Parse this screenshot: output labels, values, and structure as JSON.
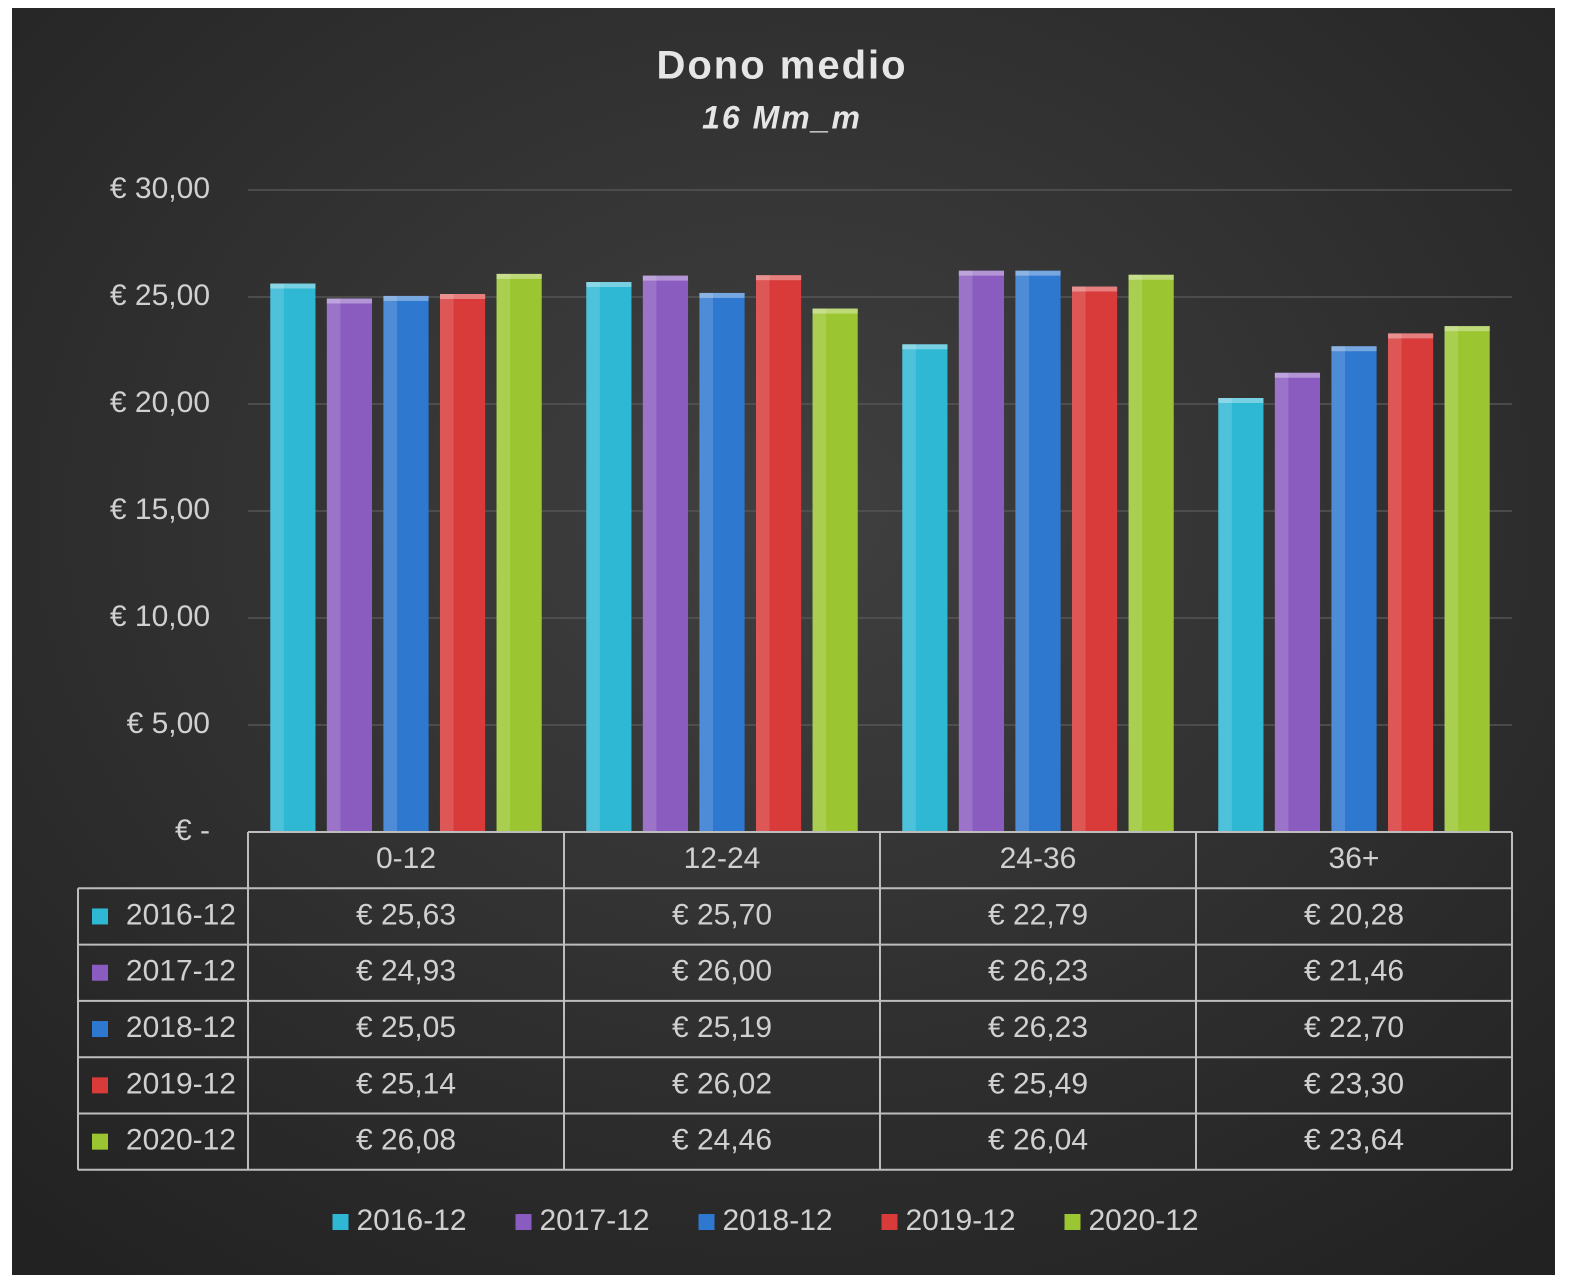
{
  "chart_data": {
    "type": "bar",
    "title": "Dono medio",
    "subtitle": "16 Mm_m",
    "categories": [
      "0-12",
      "12-24",
      "24-36",
      "36+"
    ],
    "series": [
      {
        "name": "2016-12",
        "color": "#2fb8d4",
        "values": [
          25.63,
          25.7,
          22.79,
          20.28
        ],
        "value_labels": [
          "€ 25,63",
          "€ 25,70",
          "€ 22,79",
          "€ 20,28"
        ]
      },
      {
        "name": "2017-12",
        "color": "#8a5cc0",
        "values": [
          24.93,
          26.0,
          26.23,
          21.46
        ],
        "value_labels": [
          "€ 24,93",
          "€ 26,00",
          "€ 26,23",
          "€ 21,46"
        ]
      },
      {
        "name": "2018-12",
        "color": "#2f78d0",
        "values": [
          25.05,
          25.19,
          26.23,
          22.7
        ],
        "value_labels": [
          "€ 25,05",
          "€ 25,19",
          "€ 26,23",
          "€ 22,70"
        ]
      },
      {
        "name": "2019-12",
        "color": "#d93a3a",
        "values": [
          25.14,
          26.02,
          25.49,
          23.3
        ],
        "value_labels": [
          "€ 25,14",
          "€ 26,02",
          "€ 25,49",
          "€ 23,30"
        ]
      },
      {
        "name": "2020-12",
        "color": "#9cc631",
        "values": [
          26.08,
          24.46,
          26.04,
          23.64
        ],
        "value_labels": [
          "€ 26,08",
          "€ 24,46",
          "€ 26,04",
          "€ 23,64"
        ]
      }
    ],
    "ylim": [
      0,
      30
    ],
    "yticks": [
      {
        "value": 0,
        "label": "€ -"
      },
      {
        "value": 5,
        "label": "€ 5,00"
      },
      {
        "value": 10,
        "label": "€ 10,00"
      },
      {
        "value": 15,
        "label": "€ 15,00"
      },
      {
        "value": 20,
        "label": "€ 20,00"
      },
      {
        "value": 25,
        "label": "€ 25,00"
      },
      {
        "value": 30,
        "label": "€ 30,00"
      }
    ],
    "grid": true,
    "legend": "bottom"
  }
}
